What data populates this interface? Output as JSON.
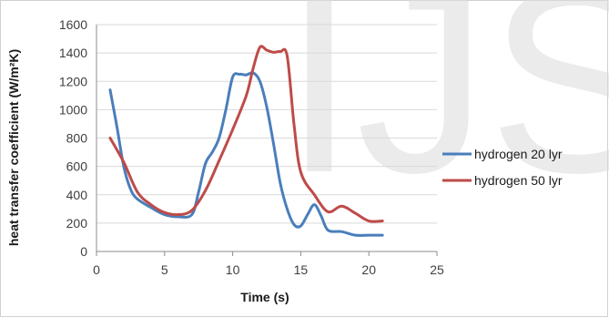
{
  "chart_data": {
    "type": "line",
    "title": "",
    "xlabel": "Time (s)",
    "ylabel": "heat transfer coefficient (W/m²K)",
    "xlim": [
      0,
      25
    ],
    "ylim": [
      0,
      1600
    ],
    "xticks": [
      0,
      5,
      10,
      15,
      20,
      25
    ],
    "yticks": [
      0,
      200,
      400,
      600,
      800,
      1000,
      1200,
      1400,
      1600
    ],
    "grid": "horizontal",
    "legend_position": "right",
    "series": [
      {
        "name": "hydrogen 20 lyr",
        "color": "#4a7ebb",
        "x": [
          1,
          1.5,
          2,
          2.5,
          3,
          4,
          5,
          6,
          7,
          7.5,
          8,
          8.5,
          9,
          9.5,
          10,
          10.5,
          11,
          11.5,
          12,
          12.5,
          13,
          13.5,
          14,
          14.5,
          15,
          15.5,
          16,
          16.5,
          17,
          18,
          19,
          20,
          21
        ],
        "y": [
          1140,
          880,
          600,
          440,
          370,
          310,
          260,
          245,
          260,
          420,
          620,
          700,
          800,
          1000,
          1230,
          1250,
          1245,
          1260,
          1200,
          1020,
          760,
          480,
          300,
          190,
          180,
          260,
          330,
          250,
          150,
          140,
          115,
          115,
          115
        ]
      },
      {
        "name": "hydrogen 50 lyr",
        "color": "#be4b48",
        "x": [
          1,
          2,
          3,
          4,
          5,
          6,
          7,
          8,
          9,
          10,
          11,
          11.5,
          12,
          12.5,
          13,
          13.5,
          14,
          14.5,
          15,
          16,
          17,
          18,
          19,
          20,
          21
        ],
        "y": [
          800,
          630,
          420,
          330,
          275,
          260,
          290,
          430,
          640,
          860,
          1100,
          1290,
          1440,
          1420,
          1405,
          1410,
          1380,
          900,
          560,
          400,
          280,
          320,
          270,
          215,
          215
        ]
      }
    ]
  },
  "watermark_text": "IJS"
}
